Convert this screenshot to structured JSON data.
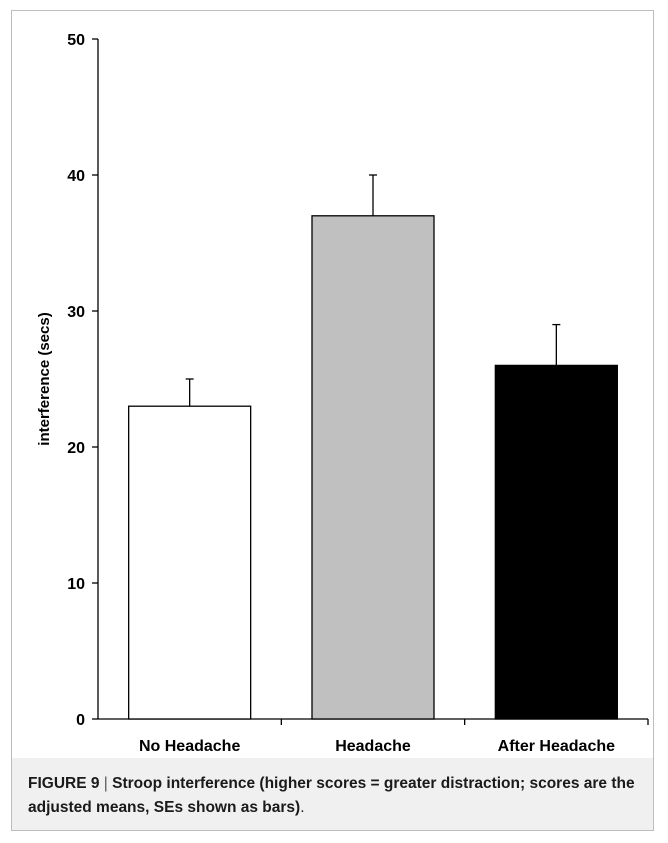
{
  "chart_data": {
    "type": "bar",
    "categories": [
      "No Headache",
      "Headache",
      "After Headache"
    ],
    "values": [
      23,
      37,
      26
    ],
    "errors": [
      2,
      3,
      3
    ],
    "bar_colors": [
      "#ffffff",
      "#c0c0c0",
      "#000000"
    ],
    "title": "",
    "xlabel": "",
    "ylabel": "interference (secs)",
    "ylim": [
      0,
      50
    ],
    "yticks": [
      0,
      10,
      20,
      30,
      40,
      50
    ],
    "grid": false,
    "legend": "none"
  },
  "caption": {
    "label": "FIGURE 9",
    "separator": "|",
    "text": "Stroop interference (higher scores = greater distraction; scores are the adjusted means, SEs shown as bars)",
    "end": "."
  }
}
